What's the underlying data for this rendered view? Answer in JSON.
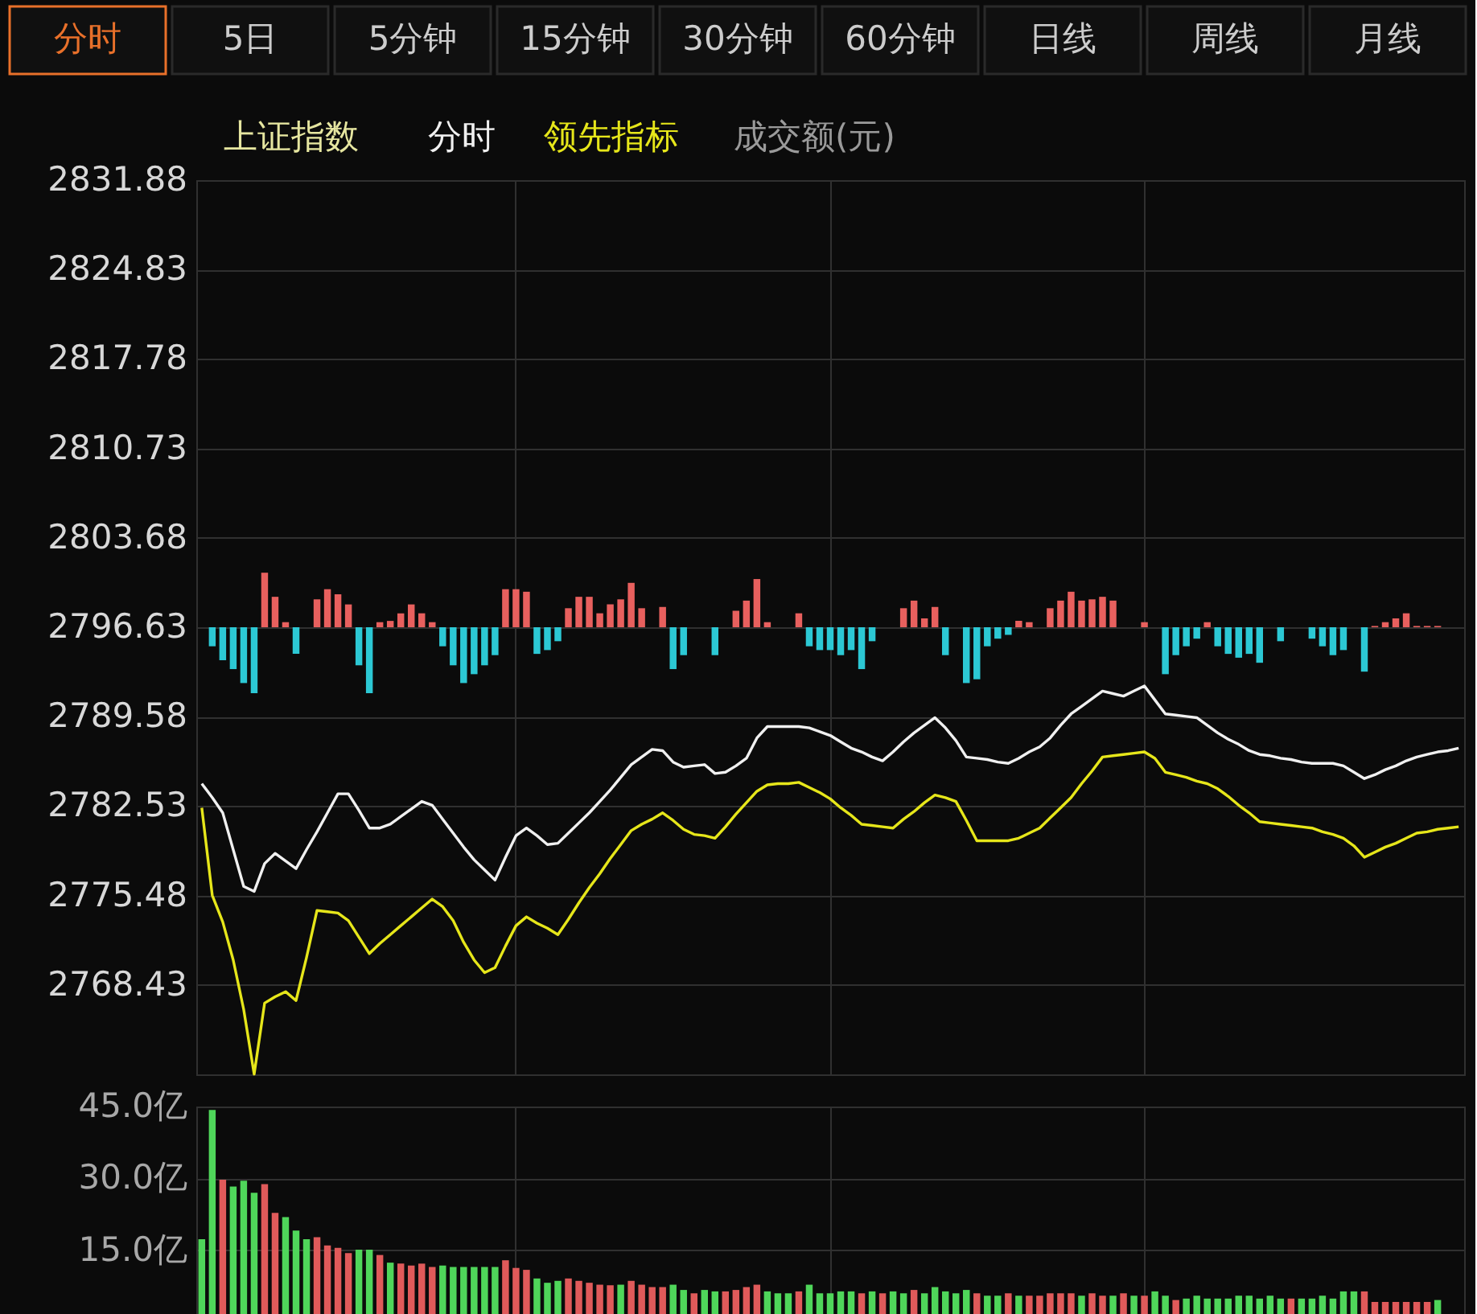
{
  "chart_data": [
    {
      "type": "line",
      "title": "上证指数",
      "grid": true,
      "marker": "none",
      "line_style": "solid",
      "annotations": [
        "分时",
        "5日",
        "5分钟",
        "15分钟",
        "30分钟",
        "60分钟",
        "日线",
        "周线",
        "月线",
        "成交额(元)"
      ],
      "categories": [
        null,
        null,
        null,
        null,
        null,
        null,
        null,
        null,
        null,
        null,
        null,
        null,
        null,
        null,
        null,
        null,
        null,
        null,
        null,
        null,
        null,
        null,
        null,
        null,
        null,
        null,
        null,
        null,
        null,
        null,
        null,
        null,
        null,
        null,
        null,
        null,
        null,
        null,
        null,
        null,
        null,
        null,
        null,
        null,
        null,
        null,
        null,
        null,
        null,
        null,
        null,
        null,
        null,
        null,
        null,
        null,
        null,
        null,
        null,
        null,
        null,
        null,
        null,
        null,
        null,
        null,
        null,
        null,
        null,
        null,
        null,
        null,
        null,
        null,
        null,
        null,
        null,
        null,
        null,
        null,
        null,
        null,
        null,
        null,
        null,
        null,
        null,
        null,
        null,
        null,
        null,
        null,
        null,
        null,
        null,
        null,
        null,
        null,
        null,
        null,
        null,
        null,
        null,
        null,
        null,
        null,
        null,
        null,
        null,
        null,
        null,
        null,
        null,
        null,
        null,
        null,
        null,
        null,
        null,
        null,
        null
      ],
      "ylim": [
        2761.38,
        2831.88
      ],
      "yticks": [
        2768.43,
        2775.48,
        2782.53,
        2789.58,
        2796.63,
        2803.68,
        2810.73,
        2817.78,
        2824.83,
        2831.88
      ],
      "series": [
        {
          "name": "分时",
          "color": "#f0f0f0",
          "values": [
            2784.3,
            2783.2,
            2782.0,
            2779.1,
            2776.2,
            2775.8,
            2778.0,
            2778.8,
            2778.2,
            2777.6,
            2779.1,
            2780.5,
            2782.0,
            2783.5,
            2783.5,
            2782.2,
            2780.8,
            2780.8,
            2781.1,
            2781.7,
            2782.3,
            2782.9,
            2782.6,
            2781.5,
            2780.4,
            2779.3,
            2778.3,
            2777.5,
            2776.7,
            2778.5,
            2780.2,
            2780.8,
            2780.2,
            2779.5,
            2779.6,
            2780.4,
            2781.2,
            2782.0,
            2782.9,
            2783.8,
            2784.8,
            2785.8,
            2786.4,
            2787.0,
            2786.9,
            2786.0,
            2785.6,
            2785.7,
            2785.8,
            2785.1,
            2785.2,
            2785.7,
            2786.3,
            2787.9,
            2788.8,
            2788.8,
            2788.8,
            2788.8,
            2788.7,
            2788.4,
            2788.1,
            2787.6,
            2787.1,
            2786.8,
            2786.4,
            2786.1,
            2786.8,
            2787.6,
            2788.3,
            2788.9,
            2789.5,
            2788.7,
            2787.7,
            2786.4,
            2786.3,
            2786.2,
            2786.0,
            2785.9,
            2786.3,
            2786.8,
            2787.2,
            2787.9,
            2788.9,
            2789.8,
            2790.4,
            2791.0,
            2791.6,
            2791.4,
            2791.2,
            2791.6,
            2792.0,
            2790.9,
            2789.8,
            2789.7,
            2789.6,
            2789.5,
            2788.9,
            2788.3,
            2787.8,
            2787.4,
            2786.9,
            2786.6,
            2786.5,
            2786.3,
            2786.2,
            2786.0,
            2785.9,
            2785.9,
            2785.9,
            2785.7,
            2785.2,
            2784.7,
            2785.0,
            2785.4,
            2785.7,
            2786.1,
            2786.4,
            2786.6,
            2786.8,
            2786.9,
            2787.1
          ]
        },
        {
          "name": "领先指标",
          "color": "#e6e61a",
          "values": [
            2782.4,
            2775.5,
            2773.4,
            2770.4,
            2766.5,
            2761.4,
            2767.0,
            2767.5,
            2767.9,
            2767.2,
            2770.6,
            2774.3,
            2774.2,
            2774.1,
            2773.5,
            2772.2,
            2770.9,
            2771.7,
            2772.4,
            2773.1,
            2773.8,
            2774.5,
            2775.2,
            2774.6,
            2773.5,
            2771.8,
            2770.4,
            2769.4,
            2769.8,
            2771.5,
            2773.1,
            2773.8,
            2773.3,
            2772.9,
            2772.4,
            2773.6,
            2774.9,
            2776.1,
            2777.2,
            2778.4,
            2779.5,
            2780.6,
            2781.1,
            2781.5,
            2782.0,
            2781.4,
            2780.7,
            2780.3,
            2780.2,
            2780.0,
            2780.9,
            2781.9,
            2782.8,
            2783.7,
            2784.2,
            2784.3,
            2784.3,
            2784.4,
            2784.0,
            2783.6,
            2783.1,
            2782.4,
            2781.8,
            2781.1,
            2781.0,
            2780.9,
            2780.8,
            2781.5,
            2782.1,
            2782.8,
            2783.4,
            2783.2,
            2782.9,
            2781.4,
            2779.8,
            2779.8,
            2779.8,
            2779.8,
            2780.0,
            2780.4,
            2780.8,
            2781.6,
            2782.4,
            2783.2,
            2784.3,
            2785.3,
            2786.4,
            2786.5,
            2786.6,
            2786.7,
            2786.8,
            2786.3,
            2785.2,
            2785.0,
            2784.8,
            2784.5,
            2784.3,
            2783.9,
            2783.3,
            2782.6,
            2782.0,
            2781.3,
            2781.2,
            2781.1,
            2781.0,
            2780.9,
            2780.8,
            2780.5,
            2780.3,
            2780.0,
            2779.4,
            2778.5,
            2778.9,
            2779.3,
            2779.6,
            2780.0,
            2780.4,
            2780.5,
            2780.7,
            2780.8,
            2780.9
          ]
        },
        {
          "type": "bar",
          "values": [
            null,
            -1.5,
            -2.6,
            -3.3,
            -4.4,
            -5.2,
            4.3,
            2.4,
            0.4,
            -2.1,
            null,
            2.2,
            3.0,
            2.6,
            1.8,
            -3.0,
            -5.2,
            0.4,
            0.5,
            1.1,
            1.8,
            1.1,
            0.4,
            -1.5,
            -3.0,
            -4.4,
            -3.7,
            -3.0,
            -2.2,
            3.0,
            3.0,
            2.8,
            -2.1,
            -1.8,
            -1.1,
            1.5,
            2.4,
            2.4,
            1.1,
            1.8,
            2.2,
            3.5,
            1.5,
            null,
            1.6,
            -3.3,
            -2.2,
            null,
            null,
            -2.2,
            null,
            1.3,
            2.1,
            3.8,
            0.4,
            null,
            null,
            1.1,
            -1.5,
            -1.8,
            -1.8,
            -2.2,
            -1.8,
            -3.3,
            -1.1,
            null,
            null,
            1.5,
            2.1,
            0.7,
            1.6,
            -2.2,
            null,
            -4.4,
            -4.1,
            -1.5,
            -0.9,
            -0.6,
            0.5,
            0.4,
            null,
            1.5,
            2.1,
            2.8,
            2.1,
            2.2,
            2.4,
            2.1,
            null,
            null,
            0.4,
            null,
            -3.7,
            -2.2,
            -1.5,
            -0.9,
            0.4,
            -1.5,
            -2.1,
            -2.4,
            -2.1,
            -2.8,
            null,
            -1.1,
            null,
            null,
            -0.9,
            -1.5,
            -2.2,
            -1.8,
            null,
            -3.5,
            0.1,
            0.4,
            0.7,
            1.1,
            0.1,
            0.1,
            0.1,
            null,
            null
          ],
          "colors": [
            null,
            "#2cc8d4",
            "#2cc8d4",
            "#2cc8d4",
            "#2cc8d4",
            "#2cc8d4",
            "#e8605e",
            "#e8605e",
            "#e8605e",
            "#2cc8d4",
            null,
            "#e8605e",
            "#e8605e",
            "#e8605e",
            "#e8605e",
            "#2cc8d4",
            "#2cc8d4",
            "#e8605e",
            "#e8605e",
            "#e8605e",
            "#e8605e",
            "#e8605e",
            "#e8605e",
            "#2cc8d4",
            "#2cc8d4",
            "#2cc8d4",
            "#2cc8d4",
            "#2cc8d4",
            "#2cc8d4",
            "#e8605e",
            "#e8605e",
            "#e8605e",
            "#2cc8d4",
            "#2cc8d4",
            "#2cc8d4",
            "#e8605e",
            "#e8605e",
            "#e8605e",
            "#e8605e",
            "#e8605e",
            "#e8605e",
            "#e8605e",
            "#e8605e",
            null,
            "#e8605e",
            "#2cc8d4",
            "#2cc8d4",
            null,
            null,
            "#2cc8d4",
            null,
            "#e8605e",
            "#e8605e",
            "#e8605e",
            "#e8605e",
            null,
            null,
            "#e8605e",
            "#2cc8d4",
            "#2cc8d4",
            "#2cc8d4",
            "#2cc8d4",
            "#2cc8d4",
            "#2cc8d4",
            "#2cc8d4",
            null,
            null,
            "#e8605e",
            "#e8605e",
            "#e8605e",
            "#e8605e",
            "#2cc8d4",
            null,
            "#2cc8d4",
            "#2cc8d4",
            "#2cc8d4",
            "#2cc8d4",
            "#2cc8d4",
            "#e8605e",
            "#e8605e",
            null,
            "#e8605e",
            "#e8605e",
            "#e8605e",
            "#e8605e",
            "#e8605e",
            "#e8605e",
            "#e8605e",
            null,
            null,
            "#e8605e",
            null,
            "#2cc8d4",
            "#2cc8d4",
            "#2cc8d4",
            "#2cc8d4",
            "#e8605e",
            "#2cc8d4",
            "#2cc8d4",
            "#2cc8d4",
            "#2cc8d4",
            "#2cc8d4",
            null,
            "#2cc8d4",
            null,
            null,
            "#2cc8d4",
            "#2cc8d4",
            "#2cc8d4",
            "#2cc8d4",
            null,
            "#2cc8d4",
            "#e8605e",
            "#e8605e",
            "#e8605e",
            "#e8605e",
            "#e8605e",
            "#e8605e",
            "#e8605e",
            null,
            null
          ],
          "base": [
            null,
            2796.63,
            2796.63,
            2796.63,
            2796.63,
            2796.63,
            2796.63,
            2796.63,
            2796.63,
            2796.63,
            null,
            2796.63,
            2796.63,
            2796.63,
            2796.63,
            2796.63,
            2796.63,
            2796.63,
            2796.63,
            2796.63,
            2796.63,
            2796.63,
            2796.63,
            2796.63,
            2796.63,
            2796.63,
            2796.63,
            2796.63,
            2796.63,
            2796.63,
            2796.63,
            2796.63,
            2796.63,
            2796.63,
            2796.63,
            2796.63,
            2796.63,
            2796.63,
            2796.63,
            2796.63,
            2796.63,
            2796.63,
            2796.63,
            null,
            2796.63,
            2796.63,
            2796.63,
            null,
            null,
            2796.63,
            null,
            2796.63,
            2796.63,
            2796.63,
            2796.63,
            null,
            null,
            2796.63,
            2796.63,
            2796.63,
            2796.63,
            2796.63,
            2796.63,
            2796.63,
            2796.63,
            null,
            null,
            2796.63,
            2796.63,
            2796.63,
            2796.63,
            2796.63,
            null,
            2796.63,
            2796.63,
            2796.63,
            2796.63,
            2796.63,
            2796.63,
            2796.63,
            null,
            2796.63,
            2796.63,
            2796.63,
            2796.63,
            2796.63,
            2796.63,
            2796.63,
            null,
            null,
            2796.63,
            null,
            2796.63,
            2796.63,
            2796.63,
            2796.63,
            2796.63,
            2796.63,
            2796.63,
            2796.63,
            2796.63,
            2796.63,
            null,
            2796.63,
            null,
            null,
            2796.63,
            2796.63,
            2796.63,
            2796.63,
            null,
            2796.63,
            2796.63,
            2796.63,
            2796.63,
            2796.63,
            2796.63,
            2796.63,
            2796.63,
            null,
            null
          ]
        }
      ]
    },
    {
      "type": "bar",
      "grid": true,
      "categories": [
        null,
        null,
        null,
        null,
        null,
        null,
        null,
        null,
        null,
        null,
        null,
        null,
        null,
        null,
        null,
        null,
        null,
        null,
        null,
        null,
        null,
        null,
        null,
        null,
        null,
        null,
        null,
        null,
        null,
        null,
        null,
        null,
        null,
        null,
        null,
        null,
        null,
        null,
        null,
        null,
        null,
        null,
        null,
        null,
        null,
        null,
        null,
        null,
        null,
        null,
        null,
        null,
        null,
        null,
        null,
        null,
        null,
        null,
        null,
        null,
        null,
        null,
        null,
        null,
        null,
        null,
        null,
        null,
        null,
        null,
        null,
        null,
        null,
        null,
        null,
        null,
        null,
        null,
        null,
        null,
        null,
        null,
        null,
        null,
        null,
        null,
        null,
        null,
        null,
        null,
        null,
        null,
        null,
        null,
        null,
        null,
        null,
        null,
        null,
        null,
        null,
        null,
        null,
        null,
        null,
        null,
        null,
        null,
        null,
        null,
        null,
        null,
        null,
        null,
        null,
        null,
        null,
        null,
        null,
        null,
        null
      ],
      "ylim": [
        0,
        45
      ],
      "yticks": [
        {
          "value": 15,
          "label": "15.0亿"
        },
        {
          "value": 30,
          "label": "30.0亿"
        },
        {
          "value": 45,
          "label": "45.0亿"
        }
      ],
      "values": [
        17.3,
        44.3,
        29.7,
        28.3,
        29.5,
        27.0,
        28.8,
        22.8,
        21.9,
        19.1,
        17.3,
        17.7,
        16.0,
        15.5,
        14.4,
        15.1,
        15.1,
        14.0,
        12.4,
        12.2,
        11.8,
        12.2,
        11.5,
        11.8,
        11.5,
        11.5,
        11.5,
        11.5,
        11.5,
        12.9,
        11.3,
        10.9,
        9.1,
        8.2,
        8.6,
        9.1,
        8.6,
        8.2,
        7.8,
        7.7,
        7.8,
        8.6,
        7.8,
        7.3,
        7.3,
        7.8,
        6.7,
        6.0,
        6.7,
        6.4,
        6.4,
        6.7,
        7.3,
        7.8,
        6.4,
        6.0,
        6.0,
        6.4,
        7.8,
        6.0,
        6.0,
        6.4,
        6.4,
        6.0,
        6.4,
        6.0,
        6.4,
        6.0,
        6.7,
        6.0,
        7.3,
        6.4,
        6.0,
        6.7,
        6.0,
        5.5,
        5.5,
        6.0,
        5.5,
        5.5,
        5.5,
        6.0,
        6.0,
        6.0,
        5.5,
        6.0,
        5.5,
        5.5,
        6.0,
        5.5,
        5.5,
        6.4,
        5.5,
        4.6,
        4.9,
        5.5,
        4.9,
        4.9,
        4.9,
        5.5,
        5.5,
        4.9,
        5.5,
        4.9,
        4.9,
        4.9,
        4.9,
        5.5,
        4.9,
        6.4,
        6.4,
        6.4,
        4.2,
        4.2,
        4.2,
        4.2,
        4.2,
        4.2,
        4.6,
        null,
        null
      ],
      "colors": [
        "#4fd65a",
        "#4fd65a",
        "#e05a5a",
        "#4fd65a",
        "#4fd65a",
        "#4fd65a",
        "#e05a5a",
        "#e05a5a",
        "#4fd65a",
        "#4fd65a",
        "#4fd65a",
        "#e05a5a",
        "#e05a5a",
        "#e05a5a",
        "#e05a5a",
        "#4fd65a",
        "#4fd65a",
        "#e05a5a",
        "#4fd65a",
        "#e05a5a",
        "#e05a5a",
        "#e05a5a",
        "#e05a5a",
        "#4fd65a",
        "#4fd65a",
        "#4fd65a",
        "#4fd65a",
        "#4fd65a",
        "#4fd65a",
        "#e05a5a",
        "#e05a5a",
        "#e05a5a",
        "#4fd65a",
        "#4fd65a",
        "#4fd65a",
        "#e05a5a",
        "#e05a5a",
        "#e05a5a",
        "#e05a5a",
        "#e05a5a",
        "#4fd65a",
        "#e05a5a",
        "#e05a5a",
        "#e05a5a",
        "#e05a5a",
        "#4fd65a",
        "#4fd65a",
        "#e05a5a",
        "#4fd65a",
        "#4fd65a",
        "#e05a5a",
        "#e05a5a",
        "#e05a5a",
        "#e05a5a",
        "#4fd65a",
        "#4fd65a",
        "#4fd65a",
        "#e05a5a",
        "#4fd65a",
        "#4fd65a",
        "#4fd65a",
        "#4fd65a",
        "#4fd65a",
        "#e05a5a",
        "#4fd65a",
        "#e05a5a",
        "#4fd65a",
        "#4fd65a",
        "#e05a5a",
        "#4fd65a",
        "#4fd65a",
        "#4fd65a",
        "#4fd65a",
        "#4fd65a",
        "#e05a5a",
        "#4fd65a",
        "#4fd65a",
        "#e05a5a",
        "#4fd65a",
        "#e05a5a",
        "#e05a5a",
        "#e05a5a",
        "#e05a5a",
        "#e05a5a",
        "#4fd65a",
        "#e05a5a",
        "#e05a5a",
        "#4fd65a",
        "#e05a5a",
        "#4fd65a",
        "#e05a5a",
        "#4fd65a",
        "#4fd65a",
        "#e05a5a",
        "#4fd65a",
        "#4fd65a",
        "#4fd65a",
        "#4fd65a",
        "#4fd65a",
        "#4fd65a",
        "#4fd65a",
        "#4fd65a",
        "#4fd65a",
        "#4fd65a",
        "#e05a5a",
        "#4fd65a",
        "#4fd65a",
        "#4fd65a",
        "#4fd65a",
        "#4fd65a",
        "#4fd65a",
        "#e05a5a",
        "#e05a5a",
        "#e05a5a",
        "#e05a5a",
        "#e05a5a",
        "#e05a5a",
        "#e05a5a",
        "#4fd65a",
        null,
        null
      ]
    }
  ]
}
